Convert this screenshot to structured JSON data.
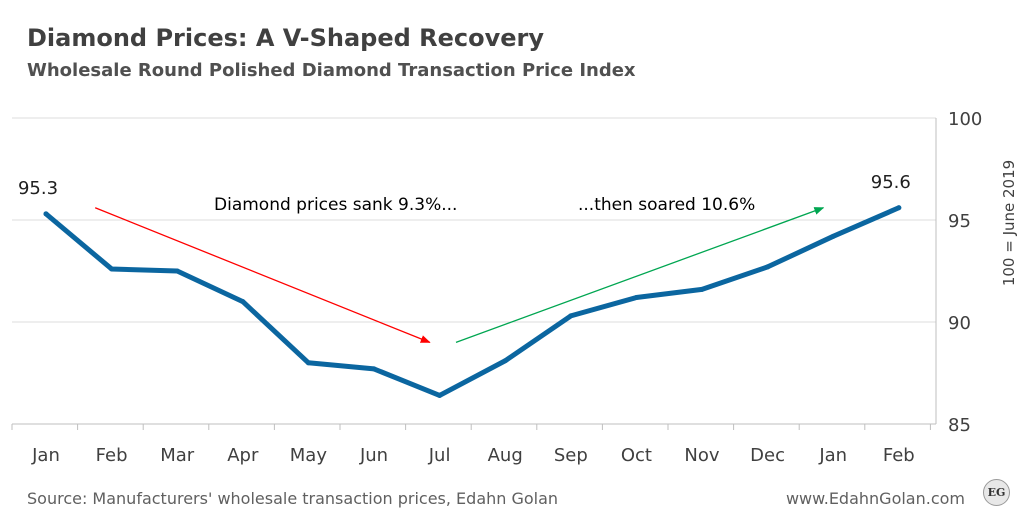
{
  "header": {
    "title": "Diamond Prices: A V-Shaped Recovery",
    "subtitle": "Wholesale Round Polished Diamond Transaction Price Index"
  },
  "footer": {
    "source": "Source: Manufacturers' wholesale transaction prices, Edahn Golan",
    "website": "www.EdahnGolan.com",
    "logo_text": "EG"
  },
  "chart_data": {
    "type": "line",
    "categories": [
      "Jan",
      "Feb",
      "Mar",
      "Apr",
      "May",
      "Jun",
      "Jul",
      "Aug",
      "Sep",
      "Oct",
      "Nov",
      "Dec",
      "Jan",
      "Feb"
    ],
    "series": [
      {
        "values": [
          95.3,
          92.6,
          92.5,
          91.0,
          88.0,
          87.7,
          86.4,
          88.1,
          90.3,
          91.2,
          91.6,
          92.7,
          94.2,
          95.6
        ],
        "color": "#0b66a0"
      }
    ],
    "ylabel": "100 = June 2019",
    "ylim": [
      85,
      100
    ],
    "yticks": [
      85,
      90,
      95,
      100
    ],
    "y_axis_side": "right",
    "grid": true,
    "data_labels": [
      {
        "index": 0,
        "text": "95.3"
      },
      {
        "index": 13,
        "text": "95.6"
      }
    ],
    "annotations": [
      {
        "text": "Diamond prices sank 9.3%...",
        "arrow": {
          "from": [
            0.75,
            95.6
          ],
          "to": [
            5.85,
            89.0
          ]
        },
        "color": "#ff0000"
      },
      {
        "text": "...then soared 10.6%",
        "arrow": {
          "from": [
            6.25,
            89.0
          ],
          "to": [
            11.85,
            95.6
          ]
        },
        "color": "#00a651"
      }
    ]
  }
}
